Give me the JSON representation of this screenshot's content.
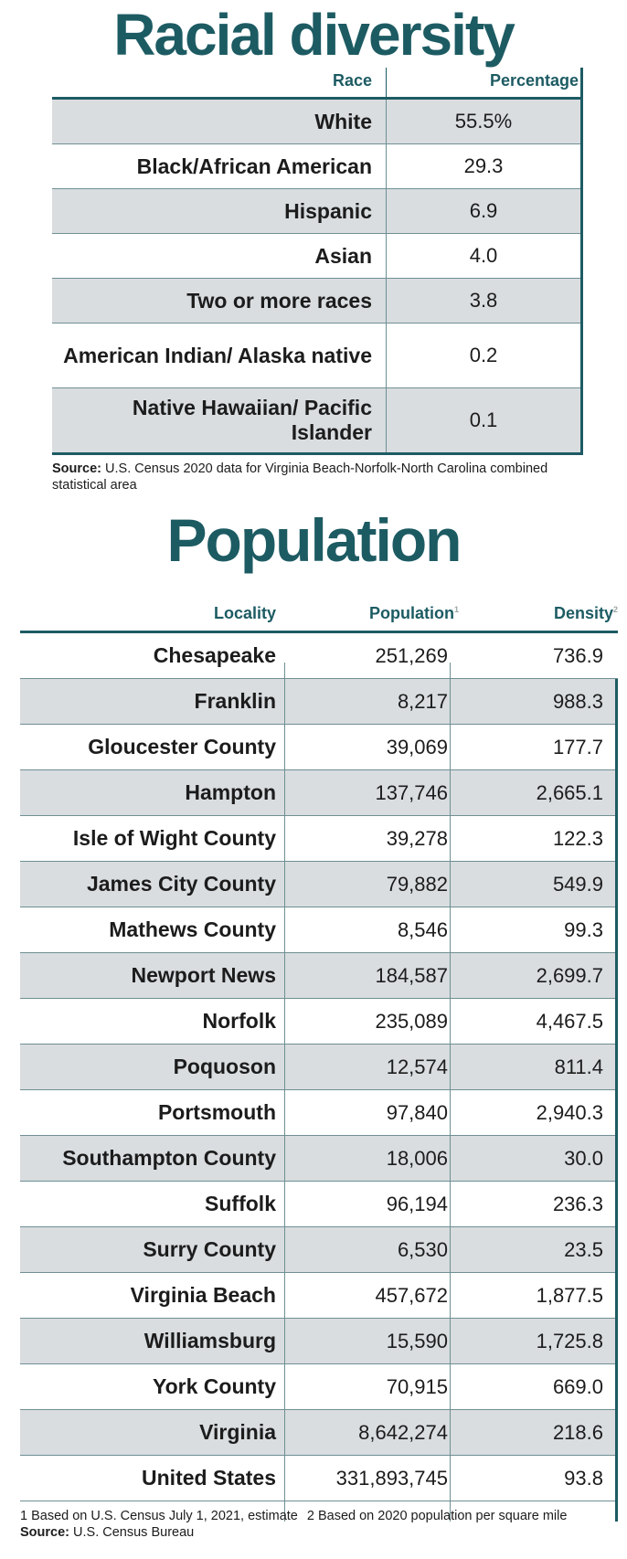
{
  "race_section": {
    "title": "Racial diversity",
    "headers": {
      "race": "Race",
      "percentage": "Percentage"
    },
    "rows": [
      {
        "race": "White",
        "value": "55.5%"
      },
      {
        "race": "Black/African American",
        "value": "29.3"
      },
      {
        "race": "Hispanic",
        "value": "6.9"
      },
      {
        "race": "Asian",
        "value": "4.0"
      },
      {
        "race": "Two or more races",
        "value": "3.8"
      },
      {
        "race": "American Indian/ Alaska native",
        "value": "0.2"
      },
      {
        "race": "Native Hawaiian/ Pacific Islander",
        "value": "0.1"
      }
    ],
    "source_label": "Source:",
    "source_text": "U.S. Census 2020 data for Virginia Beach-Norfolk-North Carolina combined statistical area"
  },
  "population_section": {
    "title": "Population",
    "headers": {
      "locality": "Locality",
      "population": "Population",
      "population_note": "1",
      "density": "Density",
      "density_note": "2"
    },
    "rows": [
      {
        "locality": "Chesapeake",
        "population": "251,269",
        "density": "736.9"
      },
      {
        "locality": "Franklin",
        "population": "8,217",
        "density": "988.3"
      },
      {
        "locality": "Gloucester County",
        "population": "39,069",
        "density": "177.7"
      },
      {
        "locality": "Hampton",
        "population": "137,746",
        "density": "2,665.1"
      },
      {
        "locality": "Isle of Wight County",
        "population": "39,278",
        "density": "122.3"
      },
      {
        "locality": "James City County",
        "population": "79,882",
        "density": "549.9"
      },
      {
        "locality": "Mathews County",
        "population": "8,546",
        "density": "99.3"
      },
      {
        "locality": "Newport News",
        "population": "184,587",
        "density": "2,699.7"
      },
      {
        "locality": "Norfolk",
        "population": "235,089",
        "density": "4,467.5"
      },
      {
        "locality": "Poquoson",
        "population": "12,574",
        "density": "811.4"
      },
      {
        "locality": "Portsmouth",
        "population": "97,840",
        "density": "2,940.3"
      },
      {
        "locality": "Southampton County",
        "population": "18,006",
        "density": "30.0"
      },
      {
        "locality": "Suffolk",
        "population": "96,194",
        "density": "236.3"
      },
      {
        "locality": "Surry County",
        "population": "6,530",
        "density": "23.5"
      },
      {
        "locality": "Virginia Beach",
        "population": "457,672",
        "density": "1,877.5"
      },
      {
        "locality": "Williamsburg",
        "population": "15,590",
        "density": "1,725.8"
      },
      {
        "locality": "York County",
        "population": "70,915",
        "density": "669.0"
      },
      {
        "locality": "Virginia",
        "population": "8,642,274",
        "density": "218.6"
      },
      {
        "locality": "United States",
        "population": "331,893,745",
        "density": "93.8"
      }
    ],
    "footnote1": "1 Based on U.S. Census July 1, 2021, estimate",
    "footnote2": "2 Based on 2020 population per square mile",
    "source_label": "Source:",
    "source_text": "U.S. Census Bureau"
  },
  "colors": {
    "accent": "#1d5b63",
    "shade": "#d9dde0",
    "rule": "#6f8f93"
  }
}
